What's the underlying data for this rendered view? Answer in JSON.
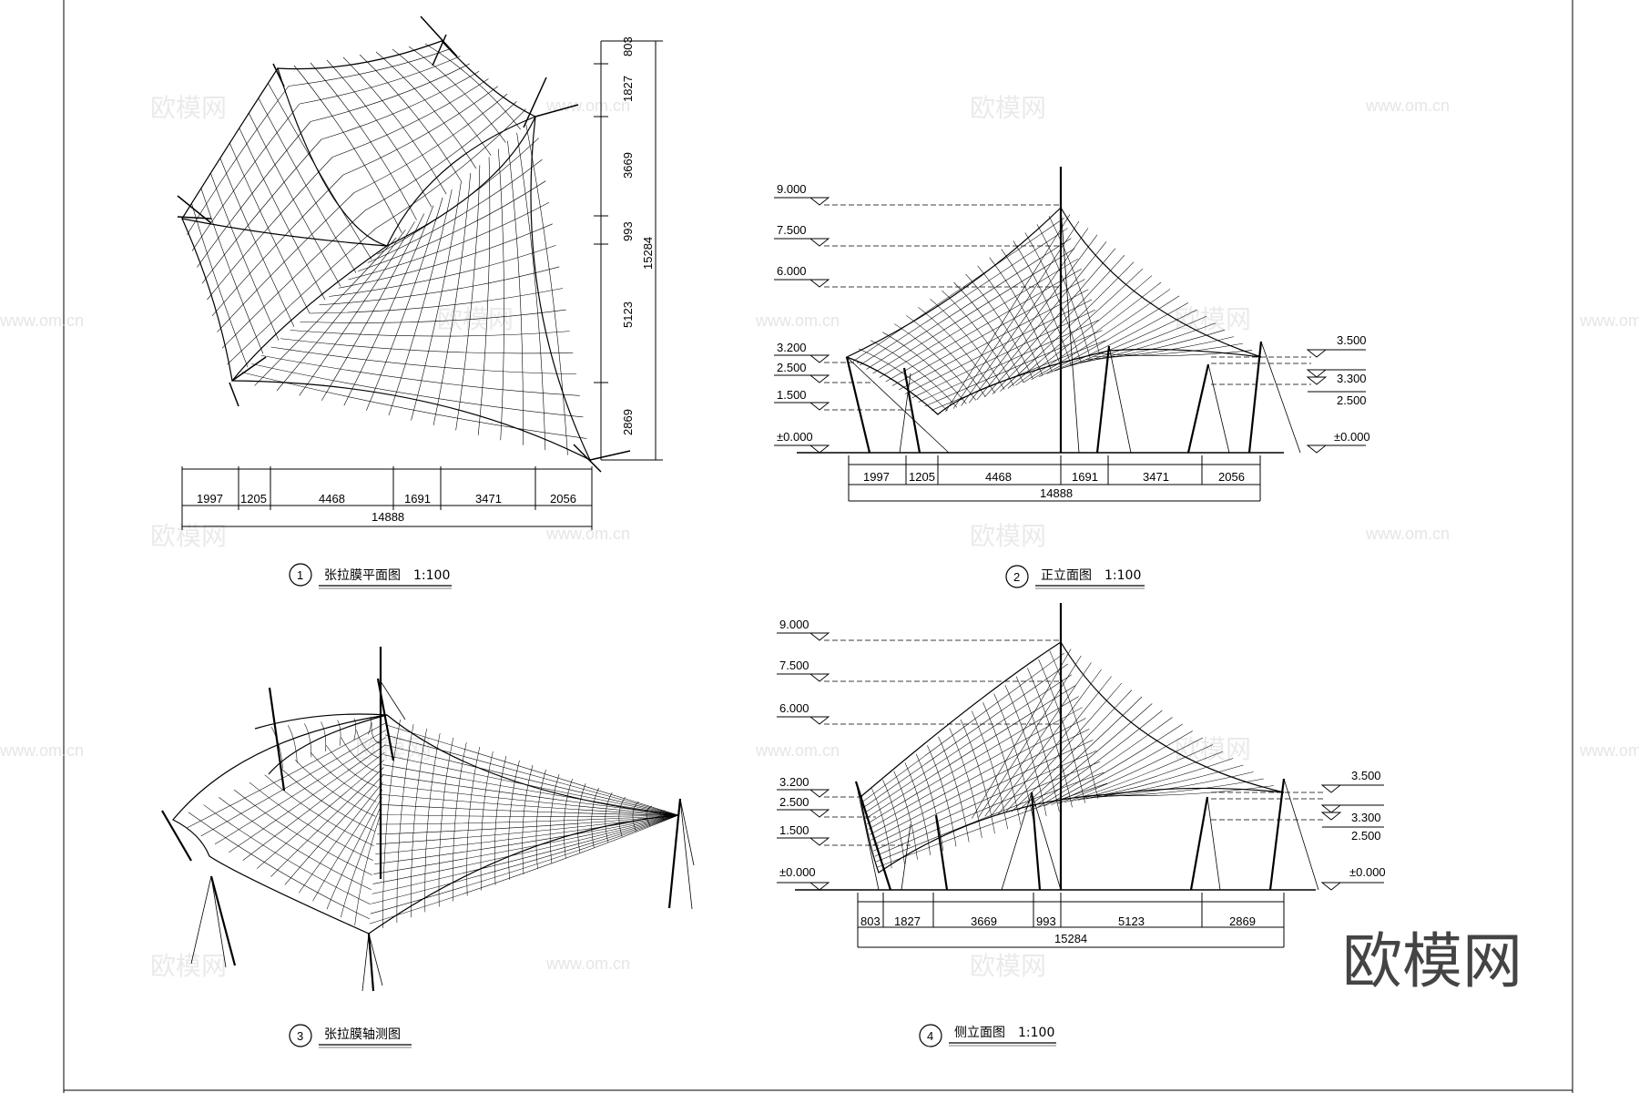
{
  "watermark": {
    "brand": "欧模网",
    "url": "www.om.cn",
    "logo": "欧模网"
  },
  "plan": {
    "title": "张拉膜平面图",
    "scale": "1:100",
    "index": "1",
    "bottom_dims": [
      "1997",
      "1205",
      "4468",
      "1691",
      "3471",
      "2056"
    ],
    "bottom_total": "14888",
    "right_dims": [
      "803",
      "1827",
      "3669",
      "993",
      "5123",
      "2869"
    ],
    "right_total": "15284"
  },
  "front": {
    "title": "正立面图",
    "scale": "1:100",
    "index": "2",
    "left_levels": [
      "9.000",
      "7.500",
      "6.000",
      "3.200",
      "2.500",
      "1.500",
      "±0.000"
    ],
    "right_levels": [
      "3.500",
      "3.300",
      "2.500",
      "±0.000"
    ],
    "bottom_dims": [
      "1997",
      "1205",
      "4468",
      "1691",
      "3471",
      "2056"
    ],
    "bottom_total": "14888"
  },
  "axon": {
    "title": "张拉膜轴测图",
    "index": "3"
  },
  "side": {
    "title": "侧立面图",
    "scale": "1:100",
    "index": "4",
    "left_levels": [
      "9.000",
      "7.500",
      "6.000",
      "3.200",
      "2.500",
      "1.500",
      "±0.000"
    ],
    "right_levels": [
      "3.500",
      "3.300",
      "2.500",
      "±0.000"
    ],
    "bottom_dims": [
      "803",
      "1827",
      "3669",
      "993",
      "5123",
      "2869"
    ],
    "bottom_total": "15284"
  }
}
